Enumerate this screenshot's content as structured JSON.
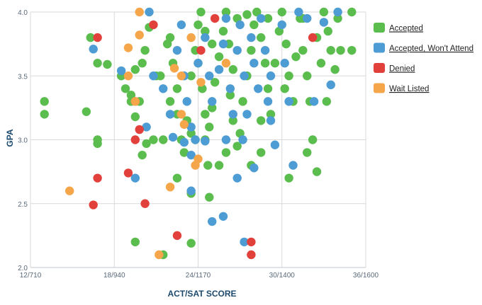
{
  "chart_data": {
    "type": "scatter",
    "xlabel": "ACT/SAT SCORE",
    "ylabel": "GPA",
    "xlim": [
      12,
      36
    ],
    "ylim": [
      2.0,
      4.0
    ],
    "x_ticks": [
      {
        "value": 12,
        "label": "12/710"
      },
      {
        "value": 18,
        "label": "18/940"
      },
      {
        "value": 24,
        "label": "24/1170"
      },
      {
        "value": 30,
        "label": "30/1400"
      },
      {
        "value": 36,
        "label": "36/1600"
      }
    ],
    "y_ticks": [
      {
        "value": 2.0,
        "label": "2.0"
      },
      {
        "value": 2.5,
        "label": "2.5"
      },
      {
        "value": 3.0,
        "label": "3.0"
      },
      {
        "value": 3.5,
        "label": "3.5"
      },
      {
        "value": 4.0,
        "label": "4.0"
      }
    ],
    "grid": true,
    "legend_position": "right",
    "series": [
      {
        "name": "Accepted",
        "color": "#5cbd4f",
        "points": [
          [
            13.0,
            3.3
          ],
          [
            13.0,
            3.2
          ],
          [
            16.0,
            3.22
          ],
          [
            16.8,
            3.0
          ],
          [
            16.8,
            2.97
          ],
          [
            16.8,
            3.6
          ],
          [
            16.3,
            3.8
          ],
          [
            17.5,
            3.59
          ],
          [
            18.5,
            3.5
          ],
          [
            18.8,
            3.4
          ],
          [
            19.5,
            3.18
          ],
          [
            19.2,
            3.3
          ],
          [
            19.8,
            3.3
          ],
          [
            20.2,
            3.7
          ],
          [
            20.5,
            3.88
          ],
          [
            21.3,
            3.5
          ],
          [
            21.8,
            3.75
          ],
          [
            22.0,
            3.8
          ],
          [
            22.2,
            3.6
          ],
          [
            22.5,
            3.4
          ],
          [
            22.0,
            3.3
          ],
          [
            22.5,
            3.2
          ],
          [
            22.8,
            3.0
          ],
          [
            23.0,
            2.9
          ],
          [
            23.2,
            3.15
          ],
          [
            23.5,
            3.05
          ],
          [
            23.8,
            3.0
          ],
          [
            23.5,
            3.5
          ],
          [
            23.8,
            3.7
          ],
          [
            24.0,
            3.9
          ],
          [
            24.2,
            4.0
          ],
          [
            24.5,
            3.85
          ],
          [
            24.0,
            3.6
          ],
          [
            24.3,
            3.4
          ],
          [
            24.5,
            3.2
          ],
          [
            24.8,
            3.1
          ],
          [
            24.5,
            3.0
          ],
          [
            24.7,
            2.8
          ],
          [
            25.0,
            3.25
          ],
          [
            25.2,
            3.45
          ],
          [
            25.5,
            3.65
          ],
          [
            25.8,
            3.85
          ],
          [
            26.0,
            4.0
          ],
          [
            26.2,
            3.75
          ],
          [
            26.5,
            3.55
          ],
          [
            26.3,
            3.35
          ],
          [
            26.5,
            3.15
          ],
          [
            26.8,
            2.95
          ],
          [
            27.0,
            3.05
          ],
          [
            27.2,
            3.3
          ],
          [
            27.5,
            3.5
          ],
          [
            27.8,
            3.7
          ],
          [
            28.0,
            3.9
          ],
          [
            28.2,
            4.0
          ],
          [
            28.5,
            3.8
          ],
          [
            28.8,
            3.6
          ],
          [
            29.0,
            3.4
          ],
          [
            29.2,
            3.2
          ],
          [
            29.5,
            3.6
          ],
          [
            29.8,
            3.85
          ],
          [
            30.0,
            4.0
          ],
          [
            30.3,
            3.75
          ],
          [
            30.5,
            3.5
          ],
          [
            30.8,
            3.3
          ],
          [
            31.0,
            3.65
          ],
          [
            31.3,
            3.95
          ],
          [
            31.5,
            3.7
          ],
          [
            31.8,
            3.5
          ],
          [
            32.0,
            3.3
          ],
          [
            32.2,
            3.0
          ],
          [
            32.5,
            3.8
          ],
          [
            32.8,
            3.6
          ],
          [
            33.0,
            4.0
          ],
          [
            33.3,
            3.85
          ],
          [
            33.5,
            3.7
          ],
          [
            33.8,
            3.55
          ],
          [
            34.0,
            3.95
          ],
          [
            35.0,
            3.7
          ],
          [
            35.0,
            4.0
          ],
          [
            31.8,
            2.9
          ],
          [
            32.5,
            2.75
          ],
          [
            30.5,
            2.7
          ],
          [
            28.5,
            2.9
          ],
          [
            27.8,
            2.8
          ],
          [
            26.0,
            2.9
          ],
          [
            25.5,
            2.8
          ],
          [
            24.8,
            2.55
          ],
          [
            23.5,
            2.58
          ],
          [
            22.5,
            2.7
          ],
          [
            20.3,
            2.97
          ],
          [
            20.0,
            2.88
          ],
          [
            19.2,
            3.35
          ],
          [
            19.5,
            3.55
          ],
          [
            20.0,
            3.6
          ],
          [
            21.0,
            3.5
          ],
          [
            21.5,
            3.0
          ],
          [
            20.8,
            3.0
          ],
          [
            19.5,
            2.2
          ],
          [
            21.5,
            2.1
          ],
          [
            23.5,
            2.19
          ],
          [
            25.0,
            3.75
          ],
          [
            26.8,
            3.95
          ],
          [
            27.5,
            3.98
          ],
          [
            28.5,
            3.15
          ],
          [
            29.0,
            3.95
          ],
          [
            30.2,
            3.4
          ],
          [
            31.5,
            3.95
          ],
          [
            33.2,
            3.3
          ],
          [
            34.2,
            3.7
          ]
        ]
      },
      {
        "name": "Accepted, Won't Attend",
        "color": "#4d9cd4",
        "points": [
          [
            16.5,
            3.71
          ],
          [
            18.5,
            3.54
          ],
          [
            19.5,
            2.7
          ],
          [
            20.3,
            3.1
          ],
          [
            20.5,
            4.0
          ],
          [
            20.8,
            3.5
          ],
          [
            21.5,
            3.4
          ],
          [
            22.0,
            3.2
          ],
          [
            22.5,
            3.7
          ],
          [
            22.8,
            3.9
          ],
          [
            23.0,
            3.5
          ],
          [
            23.2,
            3.3
          ],
          [
            23.5,
            3.1
          ],
          [
            23.8,
            3.0
          ],
          [
            23.5,
            2.6
          ],
          [
            23.5,
            2.88
          ],
          [
            24.0,
            3.6
          ],
          [
            24.5,
            3.8
          ],
          [
            24.8,
            3.5
          ],
          [
            25.0,
            3.3
          ],
          [
            25.0,
            2.36
          ],
          [
            25.5,
            3.55
          ],
          [
            25.8,
            3.75
          ],
          [
            25.8,
            2.4
          ],
          [
            26.0,
            3.95
          ],
          [
            26.3,
            3.4
          ],
          [
            26.5,
            3.2
          ],
          [
            26.8,
            3.7
          ],
          [
            26.8,
            2.7
          ],
          [
            27.0,
            3.9
          ],
          [
            27.3,
            3.5
          ],
          [
            27.3,
            2.2
          ],
          [
            27.5,
            3.2
          ],
          [
            27.8,
            3.8
          ],
          [
            28.0,
            3.6
          ],
          [
            28.0,
            2.78
          ],
          [
            28.3,
            3.4
          ],
          [
            28.5,
            3.95
          ],
          [
            28.8,
            3.7
          ],
          [
            29.0,
            3.3
          ],
          [
            29.2,
            3.5
          ],
          [
            29.5,
            2.96
          ],
          [
            30.0,
            3.9
          ],
          [
            30.2,
            3.6
          ],
          [
            30.5,
            3.3
          ],
          [
            30.8,
            2.8
          ],
          [
            31.2,
            4.0
          ],
          [
            31.8,
            3.95
          ],
          [
            32.3,
            3.3
          ],
          [
            33.0,
            3.92
          ],
          [
            33.5,
            3.43
          ],
          [
            34.0,
            4.0
          ],
          [
            27.2,
            3.0
          ],
          [
            26.0,
            3.0
          ],
          [
            24.5,
            2.99
          ],
          [
            23.0,
            2.98
          ],
          [
            22.2,
            3.02
          ],
          [
            29.2,
            3.15
          ]
        ]
      },
      {
        "name": "Denied",
        "color": "#e2413b",
        "points": [
          [
            16.8,
            3.8
          ],
          [
            16.5,
            2.49
          ],
          [
            16.8,
            2.7
          ],
          [
            19.0,
            2.74
          ],
          [
            19.5,
            3.0
          ],
          [
            19.8,
            3.08
          ],
          [
            19.5,
            3.3
          ],
          [
            20.2,
            2.5
          ],
          [
            20.8,
            3.9
          ],
          [
            22.5,
            2.25
          ],
          [
            24.2,
            3.7
          ],
          [
            27.8,
            2.2
          ],
          [
            27.8,
            2.1
          ],
          [
            32.2,
            3.8
          ],
          [
            25.2,
            3.95
          ]
        ]
      },
      {
        "name": "Wait Listed",
        "color": "#f5a54a",
        "points": [
          [
            14.8,
            2.6
          ],
          [
            19.0,
            3.72
          ],
          [
            19.0,
            3.5
          ],
          [
            19.5,
            3.3
          ],
          [
            19.8,
            3.82
          ],
          [
            19.8,
            4.0
          ],
          [
            21.2,
            2.1
          ],
          [
            22.0,
            2.63
          ],
          [
            22.3,
            3.56
          ],
          [
            22.8,
            3.2
          ],
          [
            22.8,
            3.5
          ],
          [
            23.0,
            3.12
          ],
          [
            23.5,
            3.8
          ],
          [
            23.8,
            2.8
          ],
          [
            24.0,
            2.85
          ],
          [
            24.2,
            3.45
          ],
          [
            26.0,
            3.6
          ]
        ]
      }
    ]
  }
}
